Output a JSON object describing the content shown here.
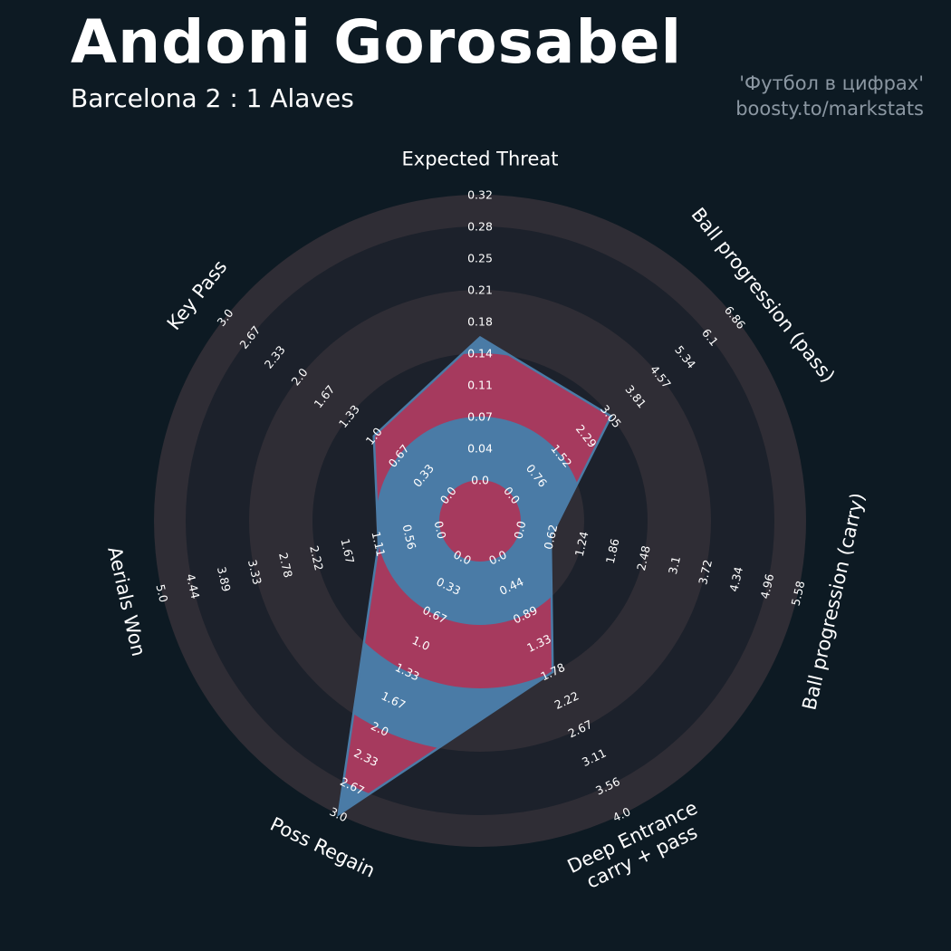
{
  "header": {
    "title": "Andoni Gorosabel",
    "subtitle": "Barcelona 2 : 1 Alaves",
    "credit_line1": "'Футбол в цифрах'",
    "credit_line2": "boosty.to/markstats"
  },
  "colors": {
    "background": "#0d1a23",
    "ring_dark": "#1c212b",
    "ring_light": "#2f2d35",
    "polygon_blue": "#4a7ba6",
    "polygon_crimson": "#a63a5e",
    "tick_text": "#ffffff",
    "axis_label_text": "#ffffff",
    "title_text": "#ffffff",
    "credit_text": "#8b97a2"
  },
  "chart_data": {
    "type": "radar",
    "axes": [
      {
        "label_lines": [
          "Expected Threat"
        ],
        "ticks": [
          "0.0",
          "0.04",
          "0.07",
          "0.11",
          "0.14",
          "0.18",
          "0.21",
          "0.25",
          "0.28",
          "0.32"
        ],
        "max": 0.32,
        "value": 0.16
      },
      {
        "label_lines": [
          "Ball progression (pass)"
        ],
        "ticks": [
          "0.0",
          "0.76",
          "1.52",
          "2.29",
          "3.05",
          "3.81",
          "4.57",
          "5.34",
          "6.1",
          "6.86"
        ],
        "max": 6.86,
        "value": 3.05
      },
      {
        "label_lines": [
          "Ball progression (carry)"
        ],
        "ticks": [
          "0.0",
          "0.62",
          "1.24",
          "1.86",
          "2.48",
          "3.1",
          "3.72",
          "4.34",
          "4.96",
          "5.58"
        ],
        "max": 5.58,
        "value": 0.62
      },
      {
        "label_lines": [
          "Deep Entrance",
          "carry + pass"
        ],
        "ticks": [
          "0.0",
          "0.44",
          "0.89",
          "1.33",
          "1.78",
          "2.22",
          "2.67",
          "3.11",
          "3.56",
          "4.0"
        ],
        "max": 4.0,
        "value": 1.78
      },
      {
        "label_lines": [
          "Poss Regain"
        ],
        "ticks": [
          "0.0",
          "0.33",
          "0.67",
          "1.0",
          "1.33",
          "1.67",
          "2.0",
          "2.33",
          "2.67",
          "3.0"
        ],
        "max": 3.0,
        "value": 3.0
      },
      {
        "label_lines": [
          "Aerials Won"
        ],
        "ticks": [
          "0.0",
          "0.56",
          "1.11",
          "1.67",
          "2.22",
          "2.78",
          "3.33",
          "3.89",
          "4.44",
          "5.0"
        ],
        "max": 5.0,
        "value": 1.11
      },
      {
        "label_lines": [
          "Key Pass"
        ],
        "ticks": [
          "0.0",
          "0.33",
          "0.67",
          "1.0",
          "1.33",
          "1.67",
          "2.0",
          "2.33",
          "2.67",
          "3.0"
        ],
        "max": 3.0,
        "value": 1.0
      }
    ]
  }
}
